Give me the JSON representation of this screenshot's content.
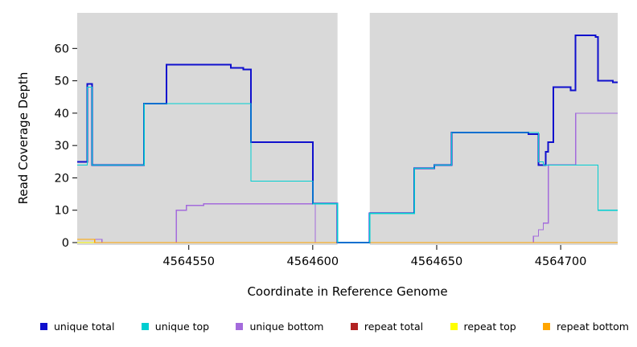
{
  "chart_data": {
    "type": "line",
    "step": true,
    "title": "",
    "xlabel": "Coordinate in Reference Genome",
    "ylabel": "Read Coverage Depth",
    "xlim": [
      4564505,
      4564723
    ],
    "ylim": [
      0,
      71
    ],
    "x_ticks": [
      4564550,
      4564600,
      4564650,
      4564700
    ],
    "y_ticks": [
      0,
      10,
      20,
      30,
      40,
      50,
      60
    ],
    "grid": false,
    "panel_bg": "#D9D9D9",
    "masked_region": {
      "x_start": 4564610,
      "x_end": 4564623
    },
    "legend_position": "bottom",
    "series": [
      {
        "name": "repeat total",
        "color": "#B22222",
        "width": 1.2,
        "points": [
          [
            4564505,
            0
          ]
        ]
      },
      {
        "name": "repeat top",
        "color": "#FFFF00",
        "width": 1.2,
        "points": [
          [
            4564505,
            0
          ]
        ]
      },
      {
        "name": "unique bottom",
        "color": "#A46BDC",
        "width": 1.3,
        "points": [
          [
            4564505,
            1
          ],
          [
            4564515,
            0
          ],
          [
            4564545,
            10
          ],
          [
            4564549,
            11.5
          ],
          [
            4564556,
            12
          ],
          [
            4564601,
            0
          ],
          [
            4564689,
            2
          ],
          [
            4564691,
            4
          ],
          [
            4564693,
            6
          ],
          [
            4564695,
            24
          ],
          [
            4564706,
            40
          ]
        ]
      },
      {
        "name": "repeat bottom",
        "color": "#FFA500",
        "width": 1.4,
        "points": [
          [
            4564505,
            1
          ],
          [
            4564512,
            0
          ]
        ]
      },
      {
        "name": "unique total",
        "color": "#1010CD",
        "width": 2,
        "points": [
          [
            4564505,
            25
          ],
          [
            4564509,
            49
          ],
          [
            4564511,
            24
          ],
          [
            4564532,
            43
          ],
          [
            4564541,
            55
          ],
          [
            4564567,
            54
          ],
          [
            4564572,
            53.5
          ],
          [
            4564575,
            31
          ],
          [
            4564600,
            12
          ],
          [
            4564610,
            0
          ],
          [
            4564623,
            9
          ],
          [
            4564641,
            23
          ],
          [
            4564649,
            24
          ],
          [
            4564656,
            34
          ],
          [
            4564687,
            33.5
          ],
          [
            4564691,
            24
          ],
          [
            4564694,
            28
          ],
          [
            4564695,
            31
          ],
          [
            4564697,
            48
          ],
          [
            4564704,
            47
          ],
          [
            4564706,
            64
          ],
          [
            4564714,
            63.5
          ],
          [
            4564715,
            50
          ],
          [
            4564721,
            49.5
          ]
        ]
      },
      {
        "name": "unique top",
        "color": "#00CED1",
        "width": 1.1,
        "points": [
          [
            4564505,
            24
          ],
          [
            4564509,
            48
          ],
          [
            4564511,
            24
          ],
          [
            4564532,
            43
          ],
          [
            4564575,
            19
          ],
          [
            4564600,
            12
          ],
          [
            4564610,
            0
          ],
          [
            4564623,
            9
          ],
          [
            4564641,
            23
          ],
          [
            4564649,
            24
          ],
          [
            4564656,
            34
          ],
          [
            4564691,
            25
          ],
          [
            4564693,
            24
          ],
          [
            4564715,
            10
          ]
        ]
      }
    ],
    "legend": [
      {
        "label": "unique total",
        "color": "#1010CD"
      },
      {
        "label": "unique top",
        "color": "#00CED1"
      },
      {
        "label": "unique bottom",
        "color": "#A46BDC"
      },
      {
        "label": "repeat total",
        "color": "#B22222"
      },
      {
        "label": "repeat top",
        "color": "#FFFF00"
      },
      {
        "label": "repeat bottom",
        "color": "#FFA500"
      }
    ]
  }
}
